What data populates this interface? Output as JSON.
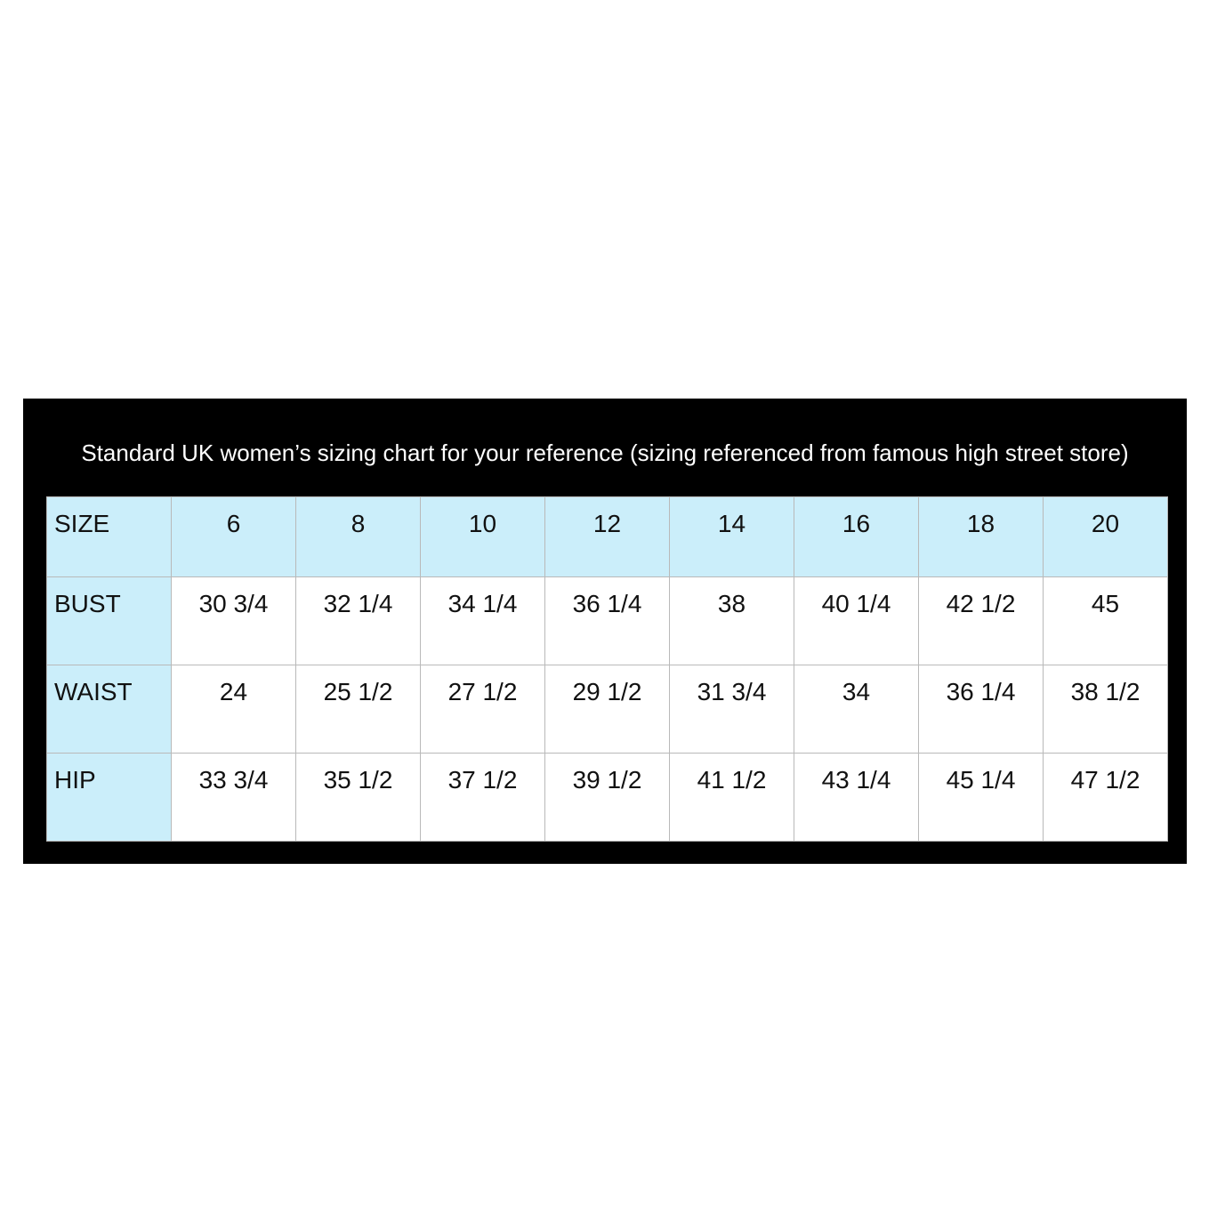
{
  "title": "Standard UK women’s sizing chart for your reference (sizing referenced from famous high street store)",
  "colors": {
    "panel": "#000000",
    "label_bg": "#cbeefa",
    "cell_bg": "#ffffff"
  },
  "header": {
    "label": "SIZE",
    "sizes": [
      "6",
      "8",
      "10",
      "12",
      "14",
      "16",
      "18",
      "20"
    ]
  },
  "rows": [
    {
      "label": "BUST",
      "values": [
        "30 3/4",
        "32 1/4",
        "34 1/4",
        "36 1/4",
        "38",
        "40 1/4",
        "42 1/2",
        "45"
      ]
    },
    {
      "label": "WAIST",
      "values": [
        "24",
        "25 1/2",
        "27 1/2",
        "29 1/2",
        "31 3/4",
        "34",
        "36 1/4",
        "38 1/2"
      ]
    },
    {
      "label": "HIP",
      "values": [
        "33 3/4",
        "35 1/2",
        "37 1/2",
        "39 1/2",
        "41 1/2",
        "43 1/4",
        "45 1/4",
        "47 1/2"
      ]
    }
  ]
}
